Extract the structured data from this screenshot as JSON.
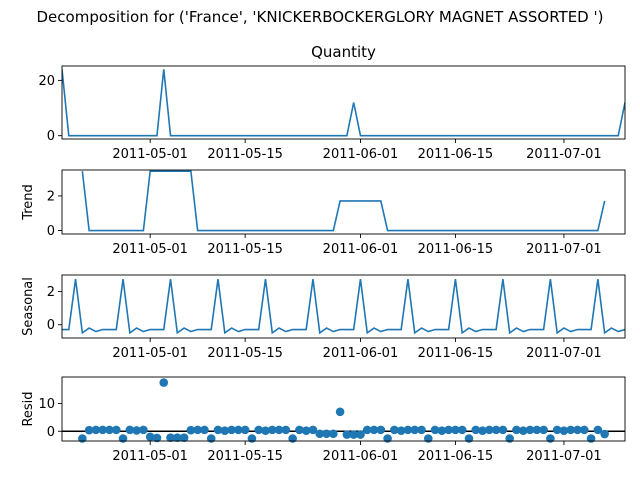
{
  "figure": {
    "suptitle": "Decomposition for ('France', 'KNICKERBOCKERGLORY MAGNET ASSORTED ')",
    "line_color": "#1f77b4",
    "zero_line_color": "#000000"
  },
  "chart_data": [
    {
      "type": "line",
      "title": "Quantity",
      "ylabel": "",
      "ylim": [
        -1.2,
        25.2
      ],
      "yticks": [
        0,
        20
      ],
      "x_range": [
        "2011-04-18",
        "2011-07-10"
      ],
      "xticks": [
        "2011-05-01",
        "2011-05-15",
        "2011-06-01",
        "2011-06-15",
        "2011-07-01"
      ],
      "series": [
        {
          "x": [
            "2011-04-18",
            "2011-04-19",
            "2011-05-02",
            "2011-05-03",
            "2011-05-04",
            "2011-05-30",
            "2011-05-31",
            "2011-06-01",
            "2011-07-09",
            "2011-07-10"
          ],
          "values": [
            24,
            0,
            0,
            24,
            0,
            0,
            12,
            0,
            0,
            12
          ]
        }
      ]
    },
    {
      "type": "line",
      "title": "",
      "ylabel": "Trend",
      "ylim": [
        -0.2,
        3.5
      ],
      "yticks": [
        0,
        2
      ],
      "x_range": [
        "2011-04-18",
        "2011-07-10"
      ],
      "xticks": [
        "2011-05-01",
        "2011-05-15",
        "2011-06-01",
        "2011-06-15",
        "2011-07-01"
      ],
      "series": [
        {
          "x": [
            "2011-04-21",
            "2011-04-22",
            "2011-04-30",
            "2011-05-01",
            "2011-05-07",
            "2011-05-08",
            "2011-05-28",
            "2011-05-29",
            "2011-06-04",
            "2011-06-05",
            "2011-07-06",
            "2011-07-07"
          ],
          "values": [
            3.43,
            0,
            0,
            3.43,
            3.43,
            0,
            0,
            1.71,
            1.71,
            0,
            0,
            1.71
          ]
        }
      ]
    },
    {
      "type": "line",
      "title": "",
      "ylabel": "Seasonal",
      "ylim": [
        -0.8,
        3.0
      ],
      "yticks": [
        0,
        2
      ],
      "x_range": [
        "2011-04-18",
        "2011-07-10"
      ],
      "xticks": [
        "2011-05-01",
        "2011-05-15",
        "2011-06-01",
        "2011-06-15",
        "2011-07-01"
      ],
      "weekly_pattern": [
        2.75,
        -0.49,
        -0.2,
        -0.41,
        -0.29,
        -0.29,
        -0.29
      ],
      "pattern_start": "2011-04-20",
      "series": [
        {
          "x": [
            "2011-04-18",
            "2011-04-19"
          ],
          "values": [
            -0.29,
            -0.29
          ]
        }
      ]
    },
    {
      "type": "scatter",
      "title": "",
      "ylabel": "Resid",
      "ylim": [
        -3.5,
        19.5
      ],
      "yticks": [
        0,
        10
      ],
      "zero_line": true,
      "x_range": [
        "2011-04-18",
        "2011-07-10"
      ],
      "xticks": [
        "2011-05-01",
        "2011-05-15",
        "2011-06-01",
        "2011-06-15",
        "2011-07-01"
      ],
      "series": [
        {
          "x": [
            "2011-04-21",
            "2011-04-22",
            "2011-04-23",
            "2011-04-24",
            "2011-04-25",
            "2011-04-26",
            "2011-04-27",
            "2011-04-28",
            "2011-04-29",
            "2011-04-30",
            "2011-05-01",
            "2011-05-02",
            "2011-05-03",
            "2011-05-04",
            "2011-05-05",
            "2011-05-06",
            "2011-05-07",
            "2011-05-08",
            "2011-05-09",
            "2011-05-10",
            "2011-05-11",
            "2011-05-12",
            "2011-05-13",
            "2011-05-14",
            "2011-05-15",
            "2011-05-16",
            "2011-05-17",
            "2011-05-18",
            "2011-05-19",
            "2011-05-20",
            "2011-05-21",
            "2011-05-22",
            "2011-05-23",
            "2011-05-24",
            "2011-05-25",
            "2011-05-26",
            "2011-05-27",
            "2011-05-28",
            "2011-05-29",
            "2011-05-30",
            "2011-05-31",
            "2011-06-01",
            "2011-06-02",
            "2011-06-03",
            "2011-06-04",
            "2011-06-05",
            "2011-06-06",
            "2011-06-07",
            "2011-06-08",
            "2011-06-09",
            "2011-06-10",
            "2011-06-11",
            "2011-06-12",
            "2011-06-13",
            "2011-06-14",
            "2011-06-15",
            "2011-06-16",
            "2011-06-17",
            "2011-06-18",
            "2011-06-19",
            "2011-06-20",
            "2011-06-21",
            "2011-06-22",
            "2011-06-23",
            "2011-06-24",
            "2011-06-25",
            "2011-06-26",
            "2011-06-27",
            "2011-06-28",
            "2011-06-29",
            "2011-06-30",
            "2011-07-01",
            "2011-07-02",
            "2011-07-03",
            "2011-07-04",
            "2011-07-05",
            "2011-07-06",
            "2011-07-07"
          ],
          "values": [
            -2.6,
            0.4,
            0.5,
            0.5,
            0.5,
            0.5,
            -2.6,
            0.5,
            0.3,
            0.5,
            -2.0,
            -2.4,
            17.5,
            -2.3,
            -2.3,
            -2.3,
            0.4,
            0.5,
            0.5,
            -2.6,
            0.5,
            0.2,
            0.5,
            0.5,
            0.5,
            -2.6,
            0.5,
            0.2,
            0.5,
            0.5,
            0.5,
            -2.6,
            0.5,
            0.2,
            0.5,
            -0.9,
            -0.9,
            -0.9,
            7.0,
            -1.2,
            -1.2,
            -1.2,
            0.5,
            0.5,
            0.5,
            -2.6,
            0.5,
            0.2,
            0.5,
            0.5,
            0.5,
            -2.6,
            0.5,
            0.2,
            0.5,
            0.5,
            0.5,
            -2.6,
            0.5,
            0.2,
            0.5,
            0.5,
            0.5,
            -2.6,
            0.5,
            0.2,
            0.5,
            0.5,
            0.5,
            -2.6,
            0.5,
            0.2,
            0.5,
            0.5,
            0.5,
            -2.6,
            0.5,
            -1.0
          ]
        }
      ]
    }
  ]
}
